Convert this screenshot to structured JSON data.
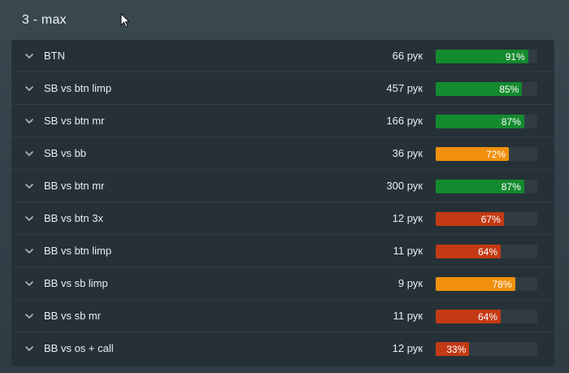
{
  "section": {
    "title": "3 - max"
  },
  "colors": {
    "green": "#148a2e",
    "orange": "#f0900c",
    "red": "#c33a14"
  },
  "rows": [
    {
      "label": "BTN",
      "count": "66 рук",
      "percent": 91,
      "percent_label": "91%",
      "color": "#148a2e"
    },
    {
      "label": "SB vs btn limp",
      "count": "457 рук",
      "percent": 85,
      "percent_label": "85%",
      "color": "#148a2e"
    },
    {
      "label": "SB vs btn mr",
      "count": "166 рук",
      "percent": 87,
      "percent_label": "87%",
      "color": "#148a2e"
    },
    {
      "label": "SB vs bb",
      "count": "36 рук",
      "percent": 72,
      "percent_label": "72%",
      "color": "#f0900c"
    },
    {
      "label": "BB vs btn mr",
      "count": "300 рук",
      "percent": 87,
      "percent_label": "87%",
      "color": "#148a2e"
    },
    {
      "label": "BB vs btn 3x",
      "count": "12 рук",
      "percent": 67,
      "percent_label": "67%",
      "color": "#c33a14"
    },
    {
      "label": "BB vs btn limp",
      "count": "11 рук",
      "percent": 64,
      "percent_label": "64%",
      "color": "#c33a14"
    },
    {
      "label": "BB vs sb limp",
      "count": "9 рук",
      "percent": 78,
      "percent_label": "78%",
      "color": "#f0900c"
    },
    {
      "label": "BB vs sb mr",
      "count": "11 рук",
      "percent": 64,
      "percent_label": "64%",
      "color": "#c33a14"
    },
    {
      "label": "BB vs os + call",
      "count": "12 рук",
      "percent": 33,
      "percent_label": "33%",
      "color": "#c33a14"
    }
  ]
}
